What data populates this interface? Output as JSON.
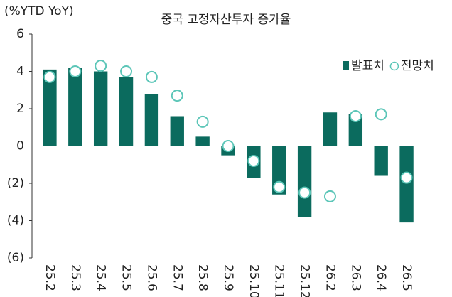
{
  "chart_data": {
    "type": "bar",
    "title": "중국 고정자산투자 증가율",
    "y_axis_label": "(%YTD YoY)",
    "categories": [
      "25.2",
      "25.3",
      "25.4",
      "25.5",
      "25.6",
      "25.7",
      "25.8",
      "25.9",
      "25.10",
      "25.11",
      "25.12",
      "26.2",
      "26.3",
      "26.4",
      "26.5"
    ],
    "series": [
      {
        "name": "발표치",
        "type": "bar",
        "color": "#0b6b5e",
        "values": [
          4.1,
          4.2,
          4.0,
          3.7,
          2.8,
          1.6,
          0.5,
          -0.5,
          -1.7,
          -2.6,
          -3.8,
          1.8,
          1.7,
          -1.6,
          -4.1
        ]
      },
      {
        "name": "전망치",
        "type": "circle",
        "color": "#5cc6b8",
        "values": [
          3.7,
          4.0,
          4.3,
          4.0,
          3.7,
          2.7,
          1.3,
          0.0,
          -0.8,
          -2.2,
          -2.5,
          -2.7,
          1.6,
          1.7,
          -1.7
        ]
      }
    ],
    "ylim": [
      -6,
      6
    ],
    "yticks": [
      {
        "value": -6,
        "label": "(6)"
      },
      {
        "value": -4,
        "label": "(4)"
      },
      {
        "value": -2,
        "label": "(2)"
      },
      0,
      2,
      4,
      6
    ],
    "legend": "upper right"
  }
}
